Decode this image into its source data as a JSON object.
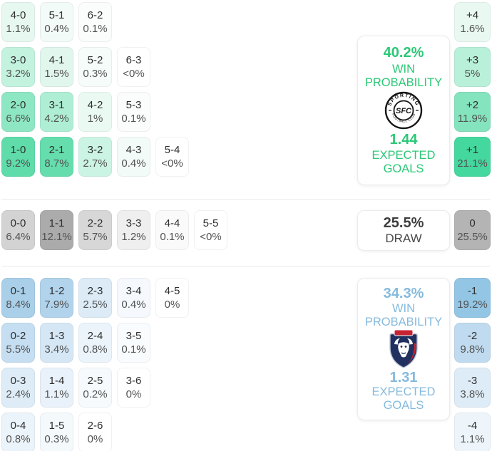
{
  "chart_data": {
    "type": "heatmap",
    "title": "Correct score probability matrix with win/draw/loss summaries",
    "legend_position": "right",
    "sections": {
      "home": {
        "win_probability": "40.2%",
        "win_label": "WIN PROBABILITY",
        "expected_goals": "1.44",
        "goals_label": "EXPECTED GOALS",
        "text_color": "#2bc876",
        "logo": {
          "top": "SPORTING",
          "bottom": "FOOTBALL CLUB",
          "monogram": "SFC"
        },
        "score_rows": [
          [
            {
              "label": "4-0",
              "pct": "1.1%",
              "color": "#e7f8f0"
            },
            {
              "label": "5-1",
              "pct": "0.4%",
              "color": "#f3fbf8"
            },
            {
              "label": "6-2",
              "pct": "0.1%",
              "color": "#fafdfc"
            }
          ],
          [
            {
              "label": "3-0",
              "pct": "3.2%",
              "color": "#c3f2df"
            },
            {
              "label": "4-1",
              "pct": "1.5%",
              "color": "#e1f7ed"
            },
            {
              "label": "5-2",
              "pct": "0.3%",
              "color": "#f5fcf9"
            },
            {
              "label": "6-3",
              "pct": "<0%",
              "color": "#ffffff"
            }
          ],
          [
            {
              "label": "2-0",
              "pct": "6.6%",
              "color": "#8ee7c3"
            },
            {
              "label": "3-1",
              "pct": "4.2%",
              "color": "#aeeed4"
            },
            {
              "label": "4-2",
              "pct": "1%",
              "color": "#eafaf3"
            },
            {
              "label": "5-3",
              "pct": "0.1%",
              "color": "#fafdfc"
            }
          ],
          [
            {
              "label": "1-0",
              "pct": "9.2%",
              "color": "#60dcaa"
            },
            {
              "label": "2-1",
              "pct": "8.7%",
              "color": "#66ddad"
            },
            {
              "label": "3-2",
              "pct": "2.7%",
              "color": "#cbf4e4"
            },
            {
              "label": "4-3",
              "pct": "0.4%",
              "color": "#f3fbf8"
            },
            {
              "label": "5-4",
              "pct": "<0%",
              "color": "#ffffff"
            }
          ]
        ],
        "diff_tiles": [
          {
            "label": "+4",
            "pct": "1.6%",
            "color": "#e9f9f2"
          },
          {
            "label": "+3",
            "pct": "5%",
            "color": "#b9f0d9"
          },
          {
            "label": "+2",
            "pct": "11.9%",
            "color": "#84e4be"
          },
          {
            "label": "+1",
            "pct": "21.1%",
            "color": "#44d79e"
          }
        ]
      },
      "draw": {
        "probability": "25.5%",
        "label": "DRAW",
        "score_rows": [
          [
            {
              "label": "0-0",
              "pct": "6.4%",
              "color": "#d3d3d3"
            },
            {
              "label": "1-1",
              "pct": "12.1%",
              "color": "#ababab"
            },
            {
              "label": "2-2",
              "pct": "5.7%",
              "color": "#d7d7d7"
            },
            {
              "label": "3-3",
              "pct": "1.2%",
              "color": "#efefef"
            },
            {
              "label": "4-4",
              "pct": "0.1%",
              "color": "#fafafa"
            },
            {
              "label": "5-5",
              "pct": "<0%",
              "color": "#ffffff"
            }
          ]
        ],
        "diff_tiles": [
          {
            "label": "0",
            "pct": "25.5%",
            "color": "#b4b4b4"
          }
        ]
      },
      "away": {
        "win_probability": "34.3%",
        "win_label": "WIN PROBABILITY",
        "expected_goals": "1.31",
        "goals_label": "EXPECTED GOALS",
        "text_color": "#85badd",
        "score_rows": [
          [
            {
              "label": "0-1",
              "pct": "8.4%",
              "color": "#a9cfe9"
            },
            {
              "label": "1-2",
              "pct": "7.9%",
              "color": "#b1d3eb"
            },
            {
              "label": "2-3",
              "pct": "2.5%",
              "color": "#dcebf6"
            },
            {
              "label": "3-4",
              "pct": "0.4%",
              "color": "#f5f9fd"
            },
            {
              "label": "4-5",
              "pct": "0%",
              "color": "#ffffff"
            }
          ],
          [
            {
              "label": "0-2",
              "pct": "5.5%",
              "color": "#c5def1"
            },
            {
              "label": "1-3",
              "pct": "3.4%",
              "color": "#d5e7f5"
            },
            {
              "label": "2-4",
              "pct": "0.8%",
              "color": "#ecf4fb"
            },
            {
              "label": "3-5",
              "pct": "0.1%",
              "color": "#f9fcfe"
            }
          ],
          [
            {
              "label": "0-3",
              "pct": "2.4%",
              "color": "#ddecf7"
            },
            {
              "label": "1-4",
              "pct": "1.1%",
              "color": "#e9f2fa"
            },
            {
              "label": "2-5",
              "pct": "0.2%",
              "color": "#f7fafd"
            },
            {
              "label": "3-6",
              "pct": "0%",
              "color": "#ffffff"
            }
          ],
          [
            {
              "label": "0-4",
              "pct": "0.8%",
              "color": "#ecf4fb"
            },
            {
              "label": "1-5",
              "pct": "0.3%",
              "color": "#f4f9fc"
            },
            {
              "label": "2-6",
              "pct": "0%",
              "color": "#ffffff"
            }
          ]
        ],
        "diff_tiles": [
          {
            "label": "-1",
            "pct": "19.2%",
            "color": "#93c6e5"
          },
          {
            "label": "-2",
            "pct": "9.8%",
            "color": "#c0dbef"
          },
          {
            "label": "-3",
            "pct": "3.8%",
            "color": "#deecf7"
          },
          {
            "label": "-4",
            "pct": "1.1%",
            "color": "#edf5fb"
          }
        ]
      }
    }
  }
}
